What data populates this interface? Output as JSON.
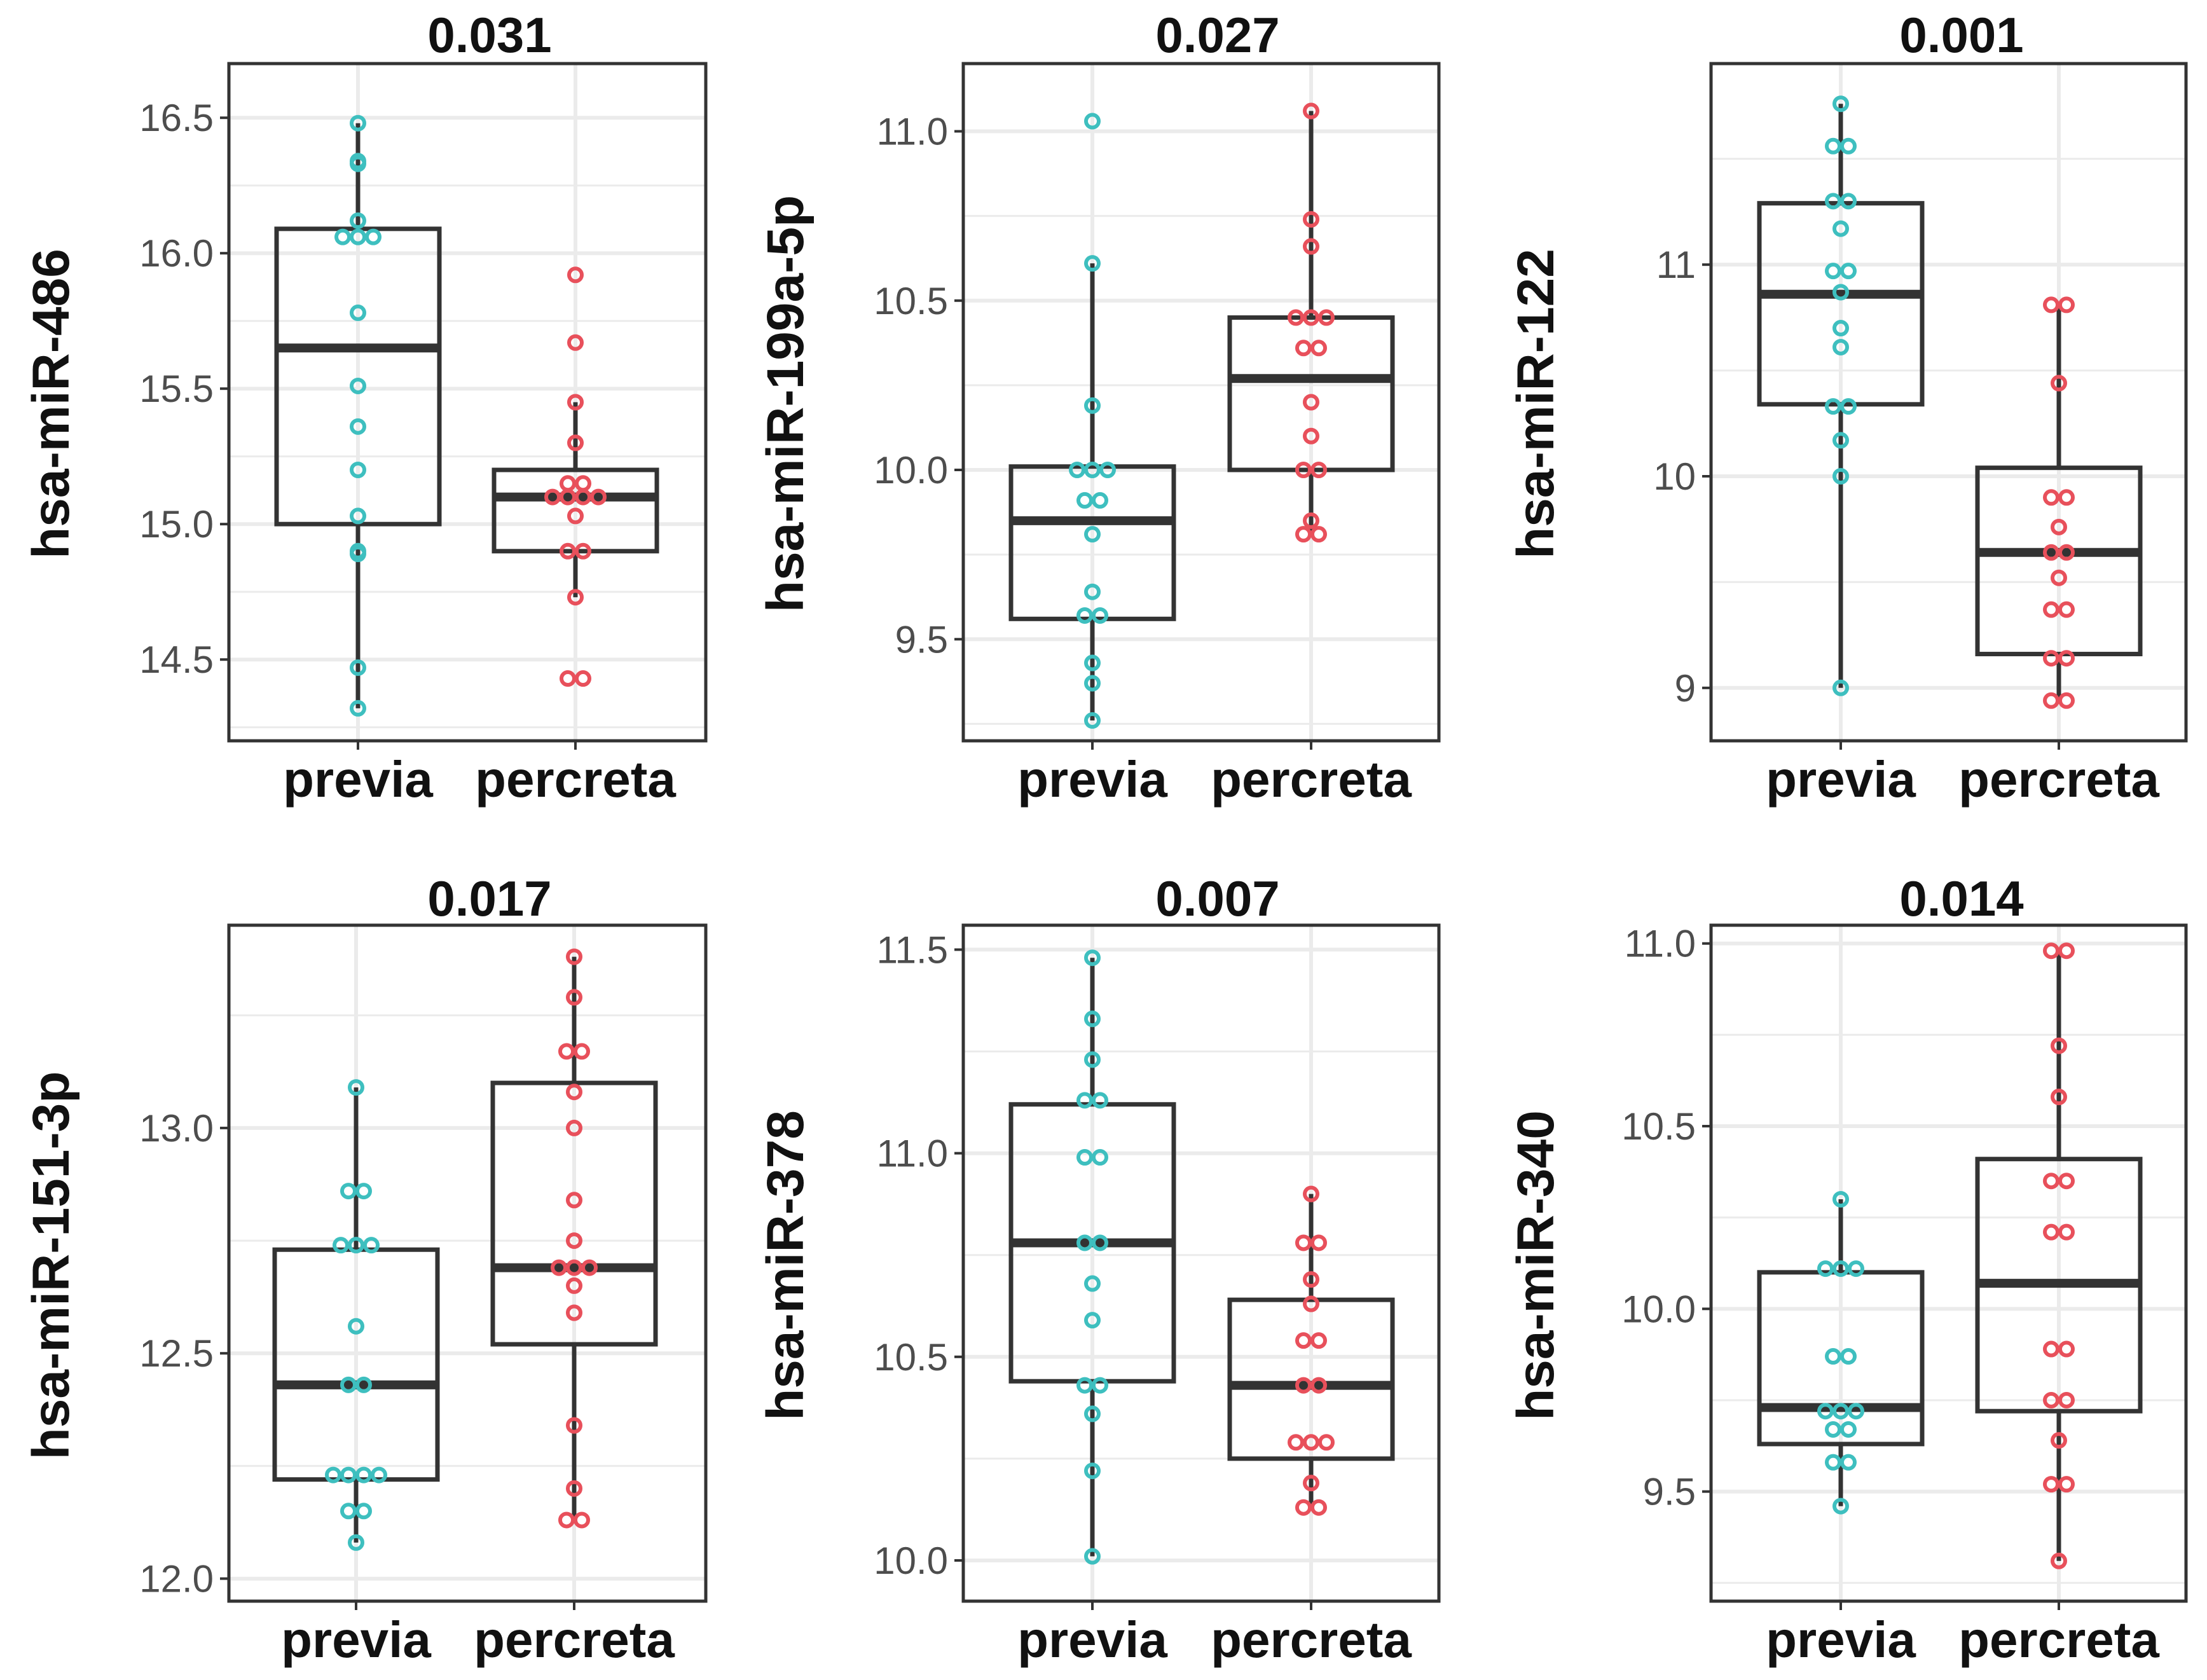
{
  "colors": {
    "previa": "#3ebfbf",
    "percreta": "#e8505b",
    "box": "#333333",
    "grid": "#ebebeb"
  },
  "chart_data": [
    {
      "type": "box",
      "title": "0.031",
      "ylabel": "hsa-miR-486",
      "categories": [
        "previa",
        "percreta"
      ],
      "yticks": [
        "14.5",
        "15.0",
        "15.5",
        "16.0",
        "16.5"
      ],
      "ylim": [
        14.2,
        16.7
      ],
      "boxes": [
        {
          "group": "previa",
          "q1": 15.0,
          "median": 15.65,
          "q3": 16.09,
          "whisker_low": 14.32,
          "whisker_high": 16.48
        },
        {
          "group": "percreta",
          "q1": 14.9,
          "median": 15.1,
          "q3": 15.2,
          "whisker_low": 14.73,
          "whisker_high": 15.45
        }
      ],
      "points": [
        {
          "group": "previa",
          "y": [
            16.48,
            16.34,
            16.33,
            16.12,
            16.06,
            16.06,
            16.06,
            15.78,
            15.51,
            15.36,
            15.2,
            15.03,
            14.9,
            14.89,
            14.47,
            14.32
          ]
        },
        {
          "group": "percreta",
          "y": [
            15.92,
            15.67,
            15.45,
            15.3,
            15.15,
            15.15,
            15.1,
            15.1,
            15.1,
            15.1,
            15.03,
            14.9,
            14.9,
            14.73,
            14.43,
            14.43
          ]
        }
      ]
    },
    {
      "type": "box",
      "title": "0.027",
      "ylabel": "hsa-miR-199a-5p",
      "categories": [
        "previa",
        "percreta"
      ],
      "yticks": [
        "9.5",
        "10.0",
        "10.5",
        "11.0"
      ],
      "ylim": [
        9.2,
        11.2
      ],
      "boxes": [
        {
          "group": "previa",
          "q1": 9.56,
          "median": 9.85,
          "q3": 10.01,
          "whisker_low": 9.26,
          "whisker_high": 10.61
        },
        {
          "group": "percreta",
          "q1": 10.0,
          "median": 10.27,
          "q3": 10.45,
          "whisker_low": 9.81,
          "whisker_high": 11.06
        }
      ],
      "points": [
        {
          "group": "previa",
          "y": [
            11.03,
            10.61,
            10.19,
            10.0,
            10.0,
            10.0,
            9.91,
            9.91,
            9.81,
            9.64,
            9.57,
            9.57,
            9.43,
            9.37,
            9.26
          ]
        },
        {
          "group": "percreta",
          "y": [
            11.06,
            10.74,
            10.66,
            10.45,
            10.45,
            10.45,
            10.36,
            10.36,
            10.2,
            10.1,
            10.0,
            10.0,
            9.85,
            9.81,
            9.81
          ]
        }
      ]
    },
    {
      "type": "box",
      "title": "0.001",
      "ylabel": "hsa-miR-122",
      "categories": [
        "previa",
        "percreta"
      ],
      "yticks": [
        "9",
        "10",
        "11"
      ],
      "ylim": [
        8.75,
        11.95
      ],
      "boxes": [
        {
          "group": "previa",
          "q1": 10.34,
          "median": 10.86,
          "q3": 11.29,
          "whisker_low": 9.0,
          "whisker_high": 11.76
        },
        {
          "group": "percreta",
          "q1": 9.16,
          "median": 9.64,
          "q3": 10.04,
          "whisker_low": 8.93,
          "whisker_high": 10.81
        }
      ],
      "points": [
        {
          "group": "previa",
          "y": [
            11.76,
            11.56,
            11.56,
            11.3,
            11.3,
            11.17,
            10.97,
            10.97,
            10.87,
            10.7,
            10.61,
            10.33,
            10.33,
            10.17,
            10.0,
            9.0
          ]
        },
        {
          "group": "percreta",
          "y": [
            10.81,
            10.81,
            10.44,
            9.9,
            9.9,
            9.76,
            9.64,
            9.64,
            9.52,
            9.37,
            9.37,
            9.14,
            9.14,
            8.94,
            8.94
          ]
        }
      ]
    },
    {
      "type": "box",
      "title": "0.017",
      "ylabel": "hsa-miR-151-3p",
      "categories": [
        "previa",
        "percreta"
      ],
      "yticks": [
        "12.0",
        "12.5",
        "13.0"
      ],
      "ylim": [
        11.95,
        13.45
      ],
      "boxes": [
        {
          "group": "previa",
          "q1": 12.22,
          "median": 12.43,
          "q3": 12.73,
          "whisker_low": 12.08,
          "whisker_high": 13.09
        },
        {
          "group": "percreta",
          "q1": 12.52,
          "median": 12.69,
          "q3": 13.1,
          "whisker_low": 12.13,
          "whisker_high": 13.38
        }
      ],
      "points": [
        {
          "group": "previa",
          "y": [
            13.09,
            12.86,
            12.86,
            12.74,
            12.74,
            12.74,
            12.56,
            12.43,
            12.43,
            12.23,
            12.23,
            12.23,
            12.23,
            12.15,
            12.15,
            12.08
          ]
        },
        {
          "group": "percreta",
          "y": [
            13.38,
            13.29,
            13.17,
            13.17,
            13.08,
            13.0,
            12.84,
            12.75,
            12.69,
            12.69,
            12.69,
            12.65,
            12.59,
            12.34,
            12.2,
            12.13,
            12.13
          ]
        }
      ]
    },
    {
      "type": "box",
      "title": "0.007",
      "ylabel": "hsa-miR-378",
      "categories": [
        "previa",
        "percreta"
      ],
      "yticks": [
        "10.0",
        "10.5",
        "11.0",
        "11.5"
      ],
      "ylim": [
        9.9,
        11.56
      ],
      "boxes": [
        {
          "group": "previa",
          "q1": 10.44,
          "median": 10.78,
          "q3": 11.12,
          "whisker_low": 10.01,
          "whisker_high": 11.48
        },
        {
          "group": "percreta",
          "q1": 10.25,
          "median": 10.43,
          "q3": 10.64,
          "whisker_low": 10.13,
          "whisker_high": 10.9
        }
      ],
      "points": [
        {
          "group": "previa",
          "y": [
            11.48,
            11.33,
            11.23,
            11.13,
            11.13,
            10.99,
            10.99,
            10.78,
            10.78,
            10.68,
            10.59,
            10.43,
            10.43,
            10.36,
            10.22,
            10.01
          ]
        },
        {
          "group": "percreta",
          "y": [
            10.9,
            10.78,
            10.78,
            10.69,
            10.63,
            10.54,
            10.54,
            10.43,
            10.43,
            10.29,
            10.29,
            10.29,
            10.19,
            10.13,
            10.13
          ]
        }
      ]
    },
    {
      "type": "box",
      "title": "0.014",
      "ylabel": "hsa-miR-340",
      "categories": [
        "previa",
        "percreta"
      ],
      "yticks": [
        "9.5",
        "10.0",
        "10.5",
        "11.0"
      ],
      "ylim": [
        9.2,
        11.05
      ],
      "boxes": [
        {
          "group": "previa",
          "q1": 9.63,
          "median": 9.73,
          "q3": 10.1,
          "whisker_low": 9.46,
          "whisker_high": 10.3
        },
        {
          "group": "percreta",
          "q1": 9.72,
          "median": 10.07,
          "q3": 10.41,
          "whisker_low": 9.31,
          "whisker_high": 10.98
        }
      ],
      "points": [
        {
          "group": "previa",
          "y": [
            10.3,
            10.11,
            10.11,
            10.11,
            9.87,
            9.87,
            9.72,
            9.72,
            9.72,
            9.67,
            9.67,
            9.58,
            9.58,
            9.46
          ]
        },
        {
          "group": "percreta",
          "y": [
            10.98,
            10.98,
            10.72,
            10.58,
            10.35,
            10.35,
            10.21,
            10.21,
            9.89,
            9.89,
            9.75,
            9.75,
            9.64,
            9.52,
            9.52,
            9.31
          ]
        }
      ]
    }
  ]
}
